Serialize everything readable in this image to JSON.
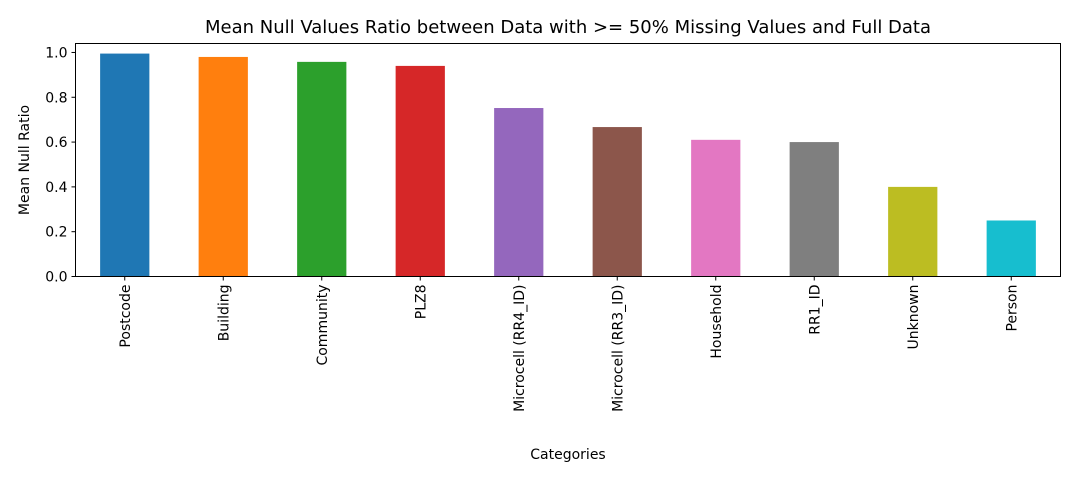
{
  "chart_data": {
    "type": "bar",
    "title": "Mean Null Values Ratio between Data with >= 50% Missing Values and Full Data",
    "xlabel": "Categories",
    "ylabel": "Mean Null Ratio",
    "ylim": [
      0,
      1.04
    ],
    "yticks": [
      0.0,
      0.2,
      0.4,
      0.6,
      0.8,
      1.0
    ],
    "ytick_labels": [
      "0.0",
      "0.2",
      "0.4",
      "0.6",
      "0.8",
      "1.0"
    ],
    "grid": false,
    "legend": "none",
    "categories": [
      "Postcode",
      "Building",
      "Community",
      "PLZ8",
      "Microcell (RR4_ID)",
      "Microcell (RR3_ID)",
      "Household",
      "RR1_ID",
      "Unknown",
      "Person"
    ],
    "values": [
      0.995,
      0.98,
      0.958,
      0.94,
      0.752,
      0.667,
      0.61,
      0.6,
      0.4,
      0.25
    ],
    "colors": [
      "#1f77b4",
      "#ff7f0e",
      "#2ca02c",
      "#d62728",
      "#9467bd",
      "#8c564b",
      "#e377c2",
      "#7f7f7f",
      "#bcbd22",
      "#17becf"
    ]
  }
}
